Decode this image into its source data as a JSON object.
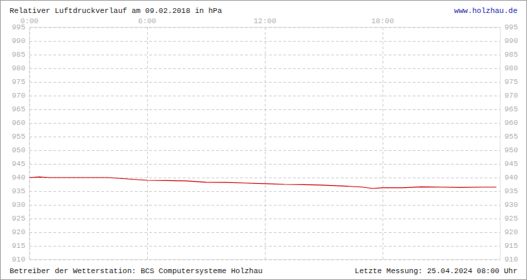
{
  "chart_data": {
    "type": "line",
    "title": "Relativer Luftdruckverlauf am 09.02.2018 in hPa",
    "website": "www.holzhau.de",
    "footer": [
      "Betreiber der Wetterstation: BCS Computersysteme Holzhau",
      "Letzte Messung: 25.04.2024 08:00 Uhr"
    ],
    "x": [
      0,
      0.5,
      1,
      2,
      3,
      4,
      5,
      6,
      7,
      8,
      9,
      10,
      11,
      12,
      13,
      14,
      15,
      16,
      17,
      17.5,
      18,
      19,
      20,
      21,
      22,
      23,
      23.8
    ],
    "values": [
      940,
      940.2,
      940,
      940,
      940,
      940,
      939.5,
      939,
      938.9,
      938.8,
      938.3,
      938.2,
      938,
      937.8,
      937.5,
      937.4,
      937.2,
      936.9,
      936.5,
      936,
      936.3,
      936.3,
      936.6,
      936.5,
      936.4,
      936.5,
      936.5
    ],
    "color": "#cc0000",
    "xlim": [
      0,
      24
    ],
    "xticks": [
      {
        "value": 0,
        "label": "0:00"
      },
      {
        "value": 6,
        "label": "6:00"
      },
      {
        "value": 12,
        "label": "12:00"
      },
      {
        "value": 18,
        "label": "18:00"
      }
    ],
    "ylim": [
      910,
      995
    ],
    "yticks": [
      910,
      915,
      920,
      925,
      930,
      935,
      940,
      945,
      950,
      955,
      960,
      965,
      970,
      975,
      980,
      985,
      990,
      995
    ],
    "grid": true
  }
}
